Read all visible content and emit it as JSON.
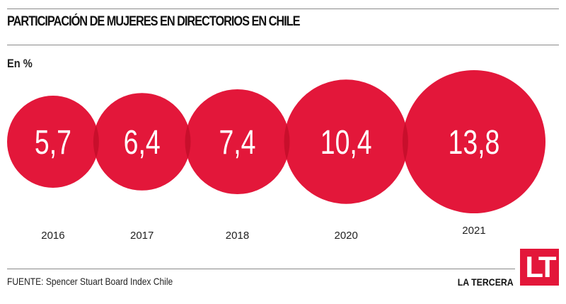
{
  "title": "PARTICIPACIÓN DE MUJERES EN DIRECTORIOS EN CHILE",
  "unit_label": "En %",
  "source": "FUENTE: Spencer Stuart Board Index Chile",
  "brand": "LA TERCERA",
  "logo": "LT",
  "colors": {
    "bubble": "#e3173a",
    "overlap": "#c80f2c",
    "text": "#ffffff"
  },
  "chart_data": {
    "type": "bubble",
    "categories": [
      "2016",
      "2017",
      "2018",
      "2020",
      "2021"
    ],
    "values": [
      5.7,
      6.4,
      7.4,
      10.4,
      13.8
    ],
    "value_labels": [
      "5,7",
      "6,4",
      "7,4",
      "10,4",
      "13,8"
    ],
    "unit": "%"
  }
}
